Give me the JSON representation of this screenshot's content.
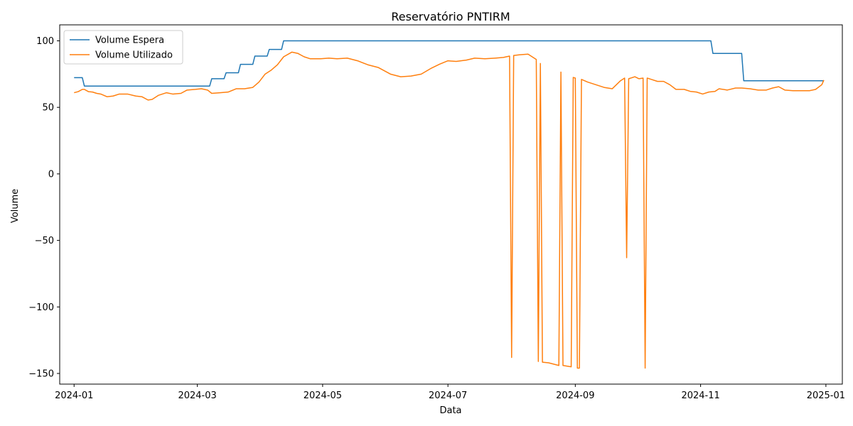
{
  "chart_data": {
    "type": "line",
    "title": "Reservatório PNTIRM",
    "xlabel": "Data",
    "ylabel": "Volume",
    "xlim": [
      "2023-12-25",
      "2025-01-09"
    ],
    "ylim": [
      -158,
      112
    ],
    "x_ticks": [
      "2024-01-01",
      "2024-03-01",
      "2024-05-01",
      "2024-07-01",
      "2024-09-01",
      "2024-11-01",
      "2025-01-01"
    ],
    "x_tick_labels": [
      "2024-01",
      "2024-03",
      "2024-05",
      "2024-07",
      "2024-09",
      "2024-11",
      "2025-01"
    ],
    "y_ticks": [
      100,
      50,
      0,
      -50,
      -100,
      -150
    ],
    "y_tick_labels": [
      "100",
      "50",
      "0",
      "−50",
      "−100",
      "−150"
    ],
    "grid": false,
    "legend_position": "top-left",
    "series": [
      {
        "name": "Volume Espera",
        "color": "#1f77b4",
        "points": [
          [
            "2024-01-01",
            72.3
          ],
          [
            "2024-01-05",
            72.3
          ],
          [
            "2024-01-06",
            66.0
          ],
          [
            "2024-03-07",
            66.0
          ],
          [
            "2024-03-08",
            71.5
          ],
          [
            "2024-03-14",
            71.5
          ],
          [
            "2024-03-15",
            76.0
          ],
          [
            "2024-03-21",
            76.0
          ],
          [
            "2024-03-22",
            82.3
          ],
          [
            "2024-03-28",
            82.3
          ],
          [
            "2024-03-29",
            88.5
          ],
          [
            "2024-04-04",
            88.5
          ],
          [
            "2024-04-05",
            93.5
          ],
          [
            "2024-04-11",
            93.5
          ],
          [
            "2024-04-12",
            100.0
          ],
          [
            "2024-11-06",
            100.0
          ],
          [
            "2024-11-07",
            90.5
          ],
          [
            "2024-11-21",
            90.5
          ],
          [
            "2024-11-22",
            70.0
          ],
          [
            "2024-12-31",
            70.0
          ]
        ]
      },
      {
        "name": "Volume Utilizado",
        "color": "#ff7f0e",
        "points": [
          [
            "2024-01-01",
            61.0
          ],
          [
            "2024-01-03",
            61.8
          ],
          [
            "2024-01-05",
            63.5
          ],
          [
            "2024-01-06",
            63.5
          ],
          [
            "2024-01-08",
            61.8
          ],
          [
            "2024-01-10",
            61.5
          ],
          [
            "2024-01-12",
            60.5
          ],
          [
            "2024-01-14",
            60.0
          ],
          [
            "2024-01-17",
            58.0
          ],
          [
            "2024-01-20",
            58.5
          ],
          [
            "2024-01-23",
            60.0
          ],
          [
            "2024-01-27",
            60.0
          ],
          [
            "2024-01-31",
            58.5
          ],
          [
            "2024-02-03",
            58.0
          ],
          [
            "2024-02-06",
            55.5
          ],
          [
            "2024-02-08",
            56.0
          ],
          [
            "2024-02-11",
            59.0
          ],
          [
            "2024-02-15",
            61.0
          ],
          [
            "2024-02-18",
            60.0
          ],
          [
            "2024-02-22",
            60.5
          ],
          [
            "2024-02-25",
            63.0
          ],
          [
            "2024-02-29",
            63.5
          ],
          [
            "2024-03-03",
            64.0
          ],
          [
            "2024-03-06",
            63.0
          ],
          [
            "2024-03-08",
            60.5
          ],
          [
            "2024-03-12",
            61.0
          ],
          [
            "2024-03-16",
            61.5
          ],
          [
            "2024-03-20",
            64.0
          ],
          [
            "2024-03-24",
            64.0
          ],
          [
            "2024-03-28",
            65.0
          ],
          [
            "2024-03-31",
            69.0
          ],
          [
            "2024-04-03",
            75.0
          ],
          [
            "2024-04-06",
            78.0
          ],
          [
            "2024-04-09",
            82.0
          ],
          [
            "2024-04-12",
            88.0
          ],
          [
            "2024-04-16",
            91.5
          ],
          [
            "2024-04-19",
            90.5
          ],
          [
            "2024-04-22",
            88.0
          ],
          [
            "2024-04-25",
            86.5
          ],
          [
            "2024-04-30",
            86.5
          ],
          [
            "2024-05-04",
            87.0
          ],
          [
            "2024-05-08",
            86.5
          ],
          [
            "2024-05-13",
            87.0
          ],
          [
            "2024-05-18",
            85.0
          ],
          [
            "2024-05-23",
            82.0
          ],
          [
            "2024-05-28",
            80.0
          ],
          [
            "2024-06-03",
            75.0
          ],
          [
            "2024-06-08",
            73.0
          ],
          [
            "2024-06-13",
            73.5
          ],
          [
            "2024-06-18",
            75.0
          ],
          [
            "2024-06-23",
            79.5
          ],
          [
            "2024-06-27",
            82.5
          ],
          [
            "2024-07-01",
            85.0
          ],
          [
            "2024-07-05",
            84.5
          ],
          [
            "2024-07-10",
            85.5
          ],
          [
            "2024-07-14",
            87.0
          ],
          [
            "2024-07-19",
            86.5
          ],
          [
            "2024-07-24",
            87.0
          ],
          [
            "2024-07-28",
            87.5
          ],
          [
            "2024-07-31",
            88.5
          ],
          [
            "2024-08-01",
            -138.0
          ],
          [
            "2024-08-02",
            89.0
          ],
          [
            "2024-08-05",
            89.5
          ],
          [
            "2024-08-09",
            90.0
          ],
          [
            "2024-08-13",
            86.0
          ],
          [
            "2024-08-14",
            -141.0
          ],
          [
            "2024-08-15",
            83.0
          ],
          [
            "2024-08-16",
            -141.5
          ],
          [
            "2024-08-19",
            -142.0
          ],
          [
            "2024-08-24",
            -144.0
          ],
          [
            "2024-08-25",
            76.5
          ],
          [
            "2024-08-26",
            -144.0
          ],
          [
            "2024-08-30",
            -145.0
          ],
          [
            "2024-08-31",
            72.5
          ],
          [
            "2024-09-01",
            72.0
          ],
          [
            "2024-09-02",
            -146.0
          ],
          [
            "2024-09-03",
            -146.0
          ],
          [
            "2024-09-04",
            71.0
          ],
          [
            "2024-09-07",
            69.0
          ],
          [
            "2024-09-11",
            67.0
          ],
          [
            "2024-09-15",
            65.0
          ],
          [
            "2024-09-19",
            64.0
          ],
          [
            "2024-09-23",
            70.0
          ],
          [
            "2024-09-25",
            72.0
          ],
          [
            "2024-09-26",
            -63.0
          ],
          [
            "2024-09-27",
            71.5
          ],
          [
            "2024-09-30",
            73.0
          ],
          [
            "2024-10-02",
            71.5
          ],
          [
            "2024-10-04",
            72.0
          ],
          [
            "2024-10-05",
            -146.0
          ],
          [
            "2024-10-06",
            72.0
          ],
          [
            "2024-10-08",
            71.0
          ],
          [
            "2024-10-11",
            69.5
          ],
          [
            "2024-10-14",
            69.5
          ],
          [
            "2024-10-17",
            67.0
          ],
          [
            "2024-10-20",
            63.5
          ],
          [
            "2024-10-24",
            63.5
          ],
          [
            "2024-10-27",
            62.0
          ],
          [
            "2024-10-30",
            61.5
          ],
          [
            "2024-11-02",
            60.0
          ],
          [
            "2024-11-05",
            61.5
          ],
          [
            "2024-11-08",
            62.0
          ],
          [
            "2024-11-10",
            64.0
          ],
          [
            "2024-11-14",
            63.0
          ],
          [
            "2024-11-18",
            64.5
          ],
          [
            "2024-11-21",
            64.5
          ],
          [
            "2024-11-25",
            64.0
          ],
          [
            "2024-11-29",
            63.0
          ],
          [
            "2024-12-03",
            63.0
          ],
          [
            "2024-12-06",
            64.5
          ],
          [
            "2024-12-09",
            65.5
          ],
          [
            "2024-12-12",
            63.0
          ],
          [
            "2024-12-16",
            62.5
          ],
          [
            "2024-12-20",
            62.5
          ],
          [
            "2024-12-24",
            62.5
          ],
          [
            "2024-12-27",
            63.5
          ],
          [
            "2024-12-30",
            67.0
          ],
          [
            "2024-12-31",
            70.5
          ]
        ]
      }
    ]
  }
}
